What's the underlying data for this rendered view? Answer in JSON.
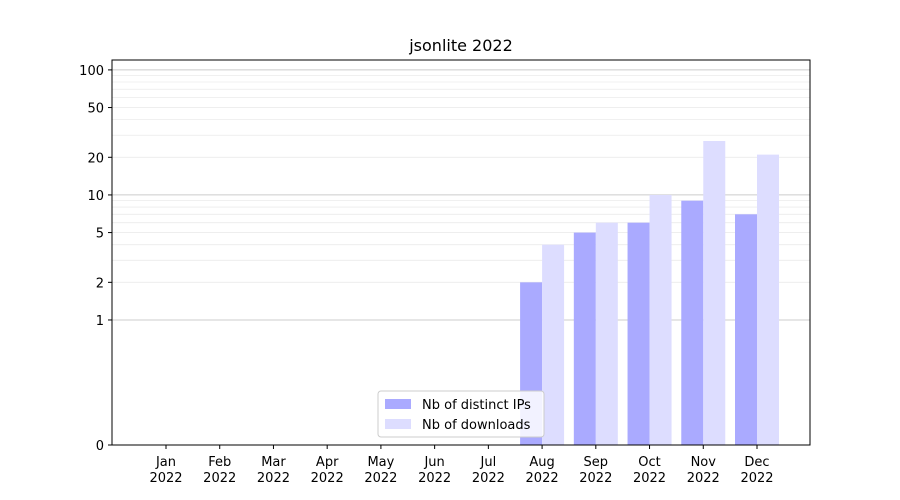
{
  "chart_data": {
    "type": "bar",
    "title": "jsonlite 2022",
    "xlabel": "",
    "ylabel": "",
    "yscale": "symlog",
    "ylim": [
      0,
      120
    ],
    "yticks": [
      0,
      1,
      2,
      5,
      10,
      20,
      50,
      100
    ],
    "ytick_labels": [
      "0",
      "1",
      "2",
      "5",
      "10",
      "20",
      "50",
      "100"
    ],
    "categories": [
      {
        "month": "Jan",
        "year": "2022"
      },
      {
        "month": "Feb",
        "year": "2022"
      },
      {
        "month": "Mar",
        "year": "2022"
      },
      {
        "month": "Apr",
        "year": "2022"
      },
      {
        "month": "May",
        "year": "2022"
      },
      {
        "month": "Jun",
        "year": "2022"
      },
      {
        "month": "Jul",
        "year": "2022"
      },
      {
        "month": "Aug",
        "year": "2022"
      },
      {
        "month": "Sep",
        "year": "2022"
      },
      {
        "month": "Oct",
        "year": "2022"
      },
      {
        "month": "Nov",
        "year": "2022"
      },
      {
        "month": "Dec",
        "year": "2022"
      }
    ],
    "series": [
      {
        "name": "Nb of distinct IPs",
        "color": "#aaaaff",
        "values": [
          0,
          0,
          0,
          0,
          0,
          0,
          0,
          2,
          5,
          6,
          9,
          7
        ]
      },
      {
        "name": "Nb of downloads",
        "color": "#ddddff",
        "values": [
          0,
          0,
          0,
          0,
          0,
          0,
          0,
          4,
          6,
          10,
          27,
          21
        ]
      }
    ],
    "grid": true,
    "legend_position": "bottom-center"
  }
}
